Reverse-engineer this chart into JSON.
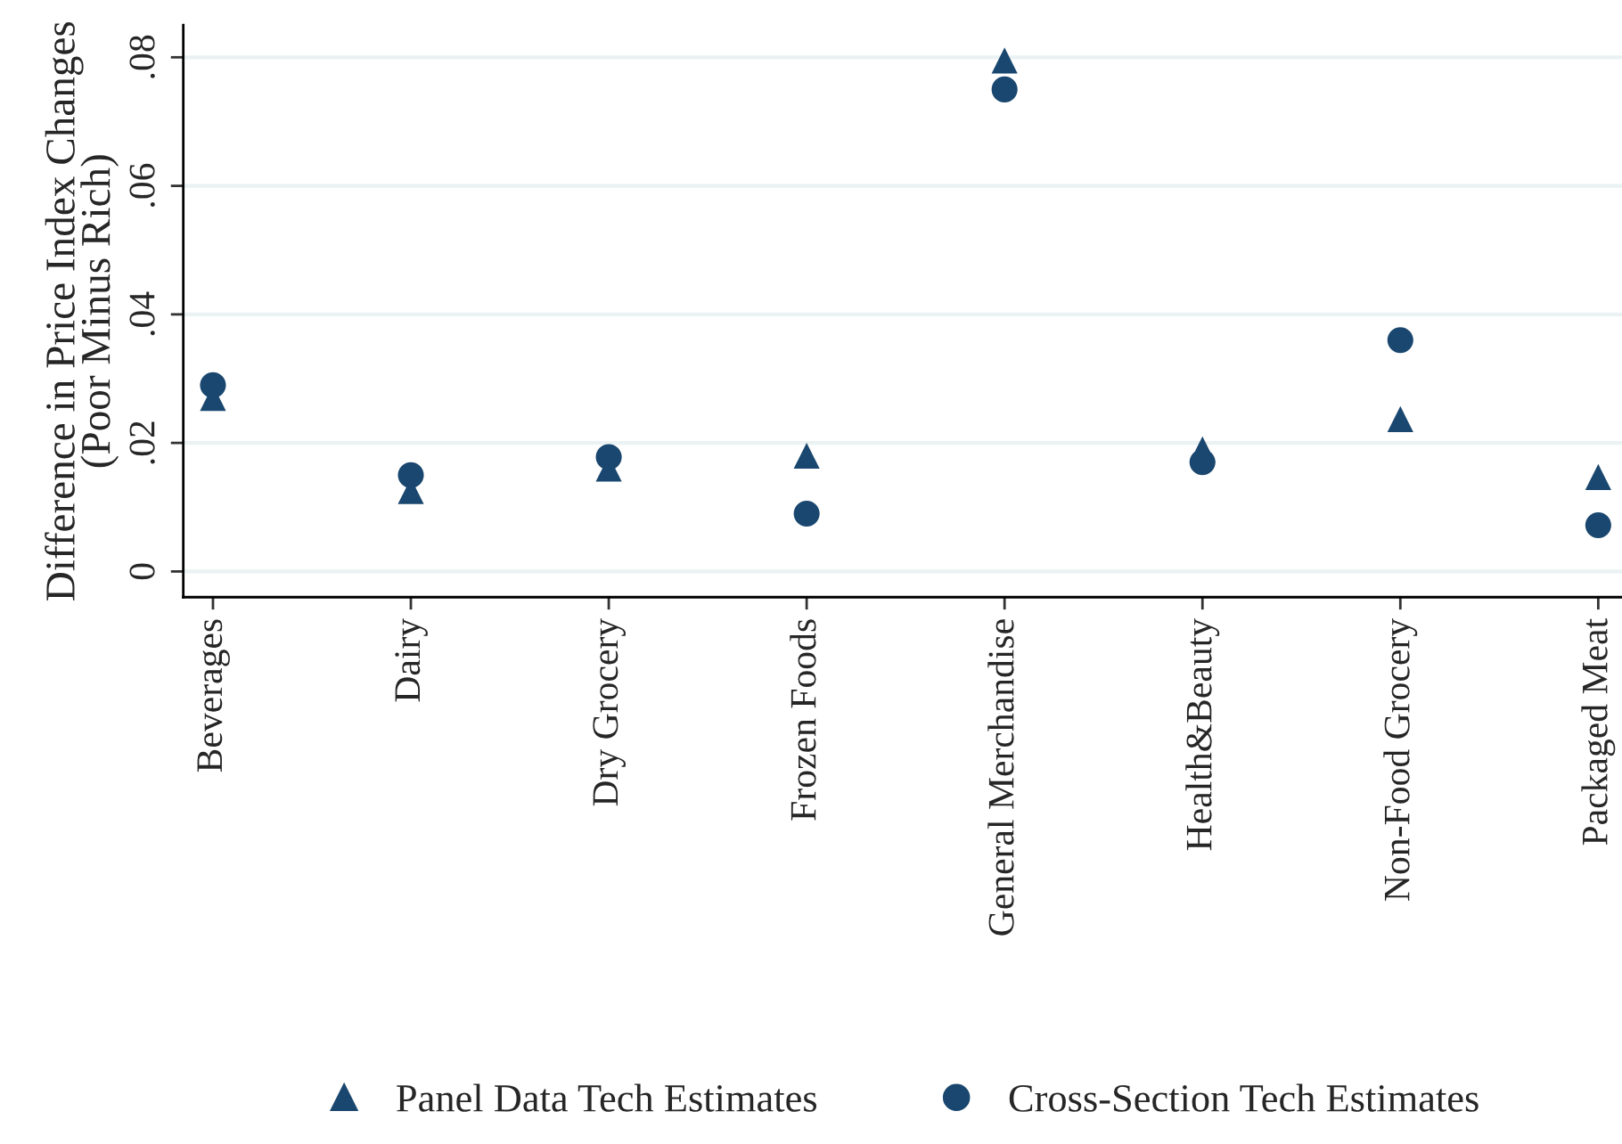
{
  "chart_data": {
    "type": "scatter",
    "ylabel": "Difference in Price Index Changes\n(Poor Minus Rich)",
    "categories": [
      "Beverages",
      "Dairy",
      "Dry Grocery",
      "Frozen Foods",
      "General Merchandise",
      "Health&Beauty",
      "Non-Food Grocery",
      "Packaged Meat"
    ],
    "series": [
      {
        "name": "Panel Data Tech Estimates",
        "color": "#1a476f",
        "marker": "triangle",
        "values": [
          0.027,
          0.0125,
          0.016,
          0.018,
          0.0795,
          0.019,
          0.0237,
          0.0147
        ]
      },
      {
        "name": "Cross-Section Tech Estimates",
        "color": "#1a476f",
        "marker": "circle",
        "values": [
          0.029,
          0.015,
          0.0178,
          0.009,
          0.075,
          0.017,
          0.036,
          0.0072
        ]
      }
    ],
    "ylim": [
      -0.004,
      0.085
    ],
    "yticks": [
      {
        "value": 0,
        "label": "0"
      },
      {
        "value": 0.02,
        "label": ".02"
      },
      {
        "value": 0.04,
        "label": ".04"
      },
      {
        "value": 0.06,
        "label": ".06"
      },
      {
        "value": 0.08,
        "label": ".08"
      }
    ],
    "grid": "y",
    "legend": "bottom"
  }
}
